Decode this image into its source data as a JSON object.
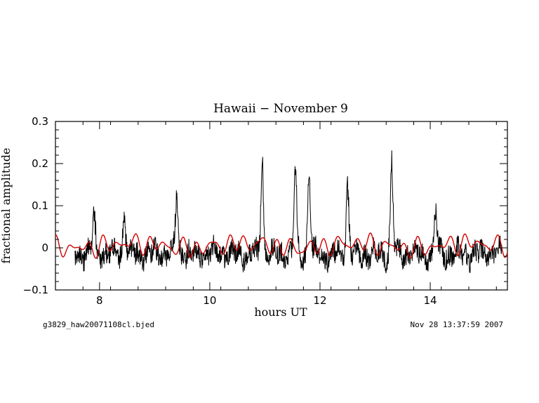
{
  "footer": {
    "left": "g3829_haw20071108cl.bjed",
    "right": "Nov 28 13:37:59 2007"
  },
  "chart_data": {
    "type": "line",
    "title": "Hawaii − November 9",
    "xlabel": "hours UT",
    "ylabel": "fractional amplitude",
    "xlim": [
      7.2,
      15.4
    ],
    "ylim": [
      -0.1,
      0.3
    ],
    "xticks": [
      8,
      10,
      12,
      14
    ],
    "xtick_labels": [
      "8",
      "10",
      "12",
      "14"
    ],
    "yticks": [
      -0.1,
      0,
      0.1,
      0.2,
      0.3
    ],
    "ytick_labels": [
      "−0.1",
      "0",
      "0.1",
      "0.2",
      "0.3"
    ],
    "grid": false,
    "series": [
      {
        "color": "#000000",
        "x_range": [
          7.55,
          15.3
        ],
        "baseline": -0.015,
        "noise_amplitude": 0.025,
        "peaks": [
          {
            "x": 7.9,
            "y": 0.08
          },
          {
            "x": 8.45,
            "y": 0.09
          },
          {
            "x": 9.4,
            "y": 0.125
          },
          {
            "x": 10.95,
            "y": 0.228
          },
          {
            "x": 11.55,
            "y": 0.2
          },
          {
            "x": 11.8,
            "y": 0.19
          },
          {
            "x": 12.5,
            "y": 0.165
          },
          {
            "x": 13.3,
            "y": 0.205
          },
          {
            "x": 14.1,
            "y": 0.095
          }
        ]
      },
      {
        "color": "#d40000",
        "x_range": [
          7.2,
          15.4
        ],
        "baseline": 0.005,
        "amplitude": 0.025
      }
    ]
  }
}
